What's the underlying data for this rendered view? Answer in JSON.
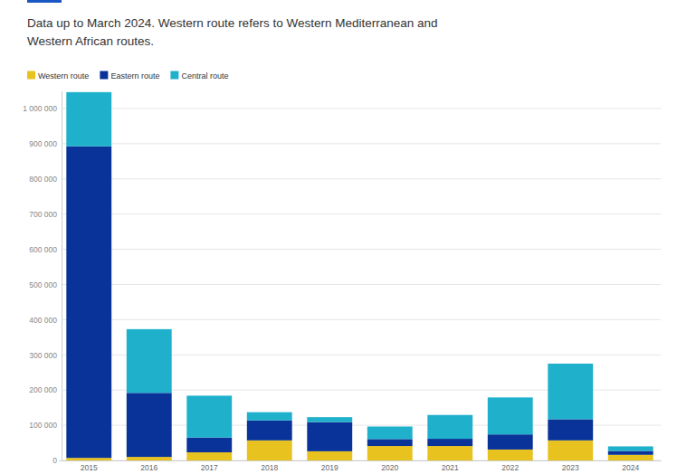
{
  "chart_data": {
    "type": "bar",
    "subtitle": "Data up to March 2024. Western route refers to Western Mediterranean and Western African routes.",
    "stacked": true,
    "grid": true,
    "legend": "top-left",
    "categories": [
      "2015",
      "2016",
      "2017",
      "2018",
      "2019",
      "2020",
      "2021",
      "2022",
      "2023",
      "2024"
    ],
    "series": [
      {
        "name": "Western route",
        "color": "#e8c21f",
        "values": [
          7200,
          10000,
          23000,
          57000,
          26000,
          41000,
          41000,
          31000,
          57000,
          16000
        ]
      },
      {
        "name": "Eastern route",
        "color": "#0a3399",
        "values": [
          885400,
          182000,
          42000,
          56600,
          83000,
          19700,
          20500,
          43000,
          60000,
          11000
        ]
      },
      {
        "name": "Central route",
        "color": "#1fb1cc",
        "values": [
          153900,
          181000,
          119000,
          23500,
          14000,
          35700,
          67700,
          105000,
          158000,
          13000
        ]
      }
    ],
    "ylim": [
      0,
      1050000
    ],
    "yticks": [
      0,
      {
        "value": 100000,
        "label": "100 000"
      },
      {
        "value": 200000,
        "label": "200 000"
      },
      {
        "value": 300000,
        "label": "300 000"
      },
      {
        "value": 400000,
        "label": "400 000"
      },
      {
        "value": 500000,
        "label": "500 000"
      },
      {
        "value": 600000,
        "label": "600 000"
      },
      {
        "value": 700000,
        "label": "700 000"
      },
      {
        "value": 800000,
        "label": "800 000"
      },
      {
        "value": 900000,
        "label": "900 000"
      },
      {
        "value": 1000000,
        "label": "1 000 000"
      }
    ]
  }
}
